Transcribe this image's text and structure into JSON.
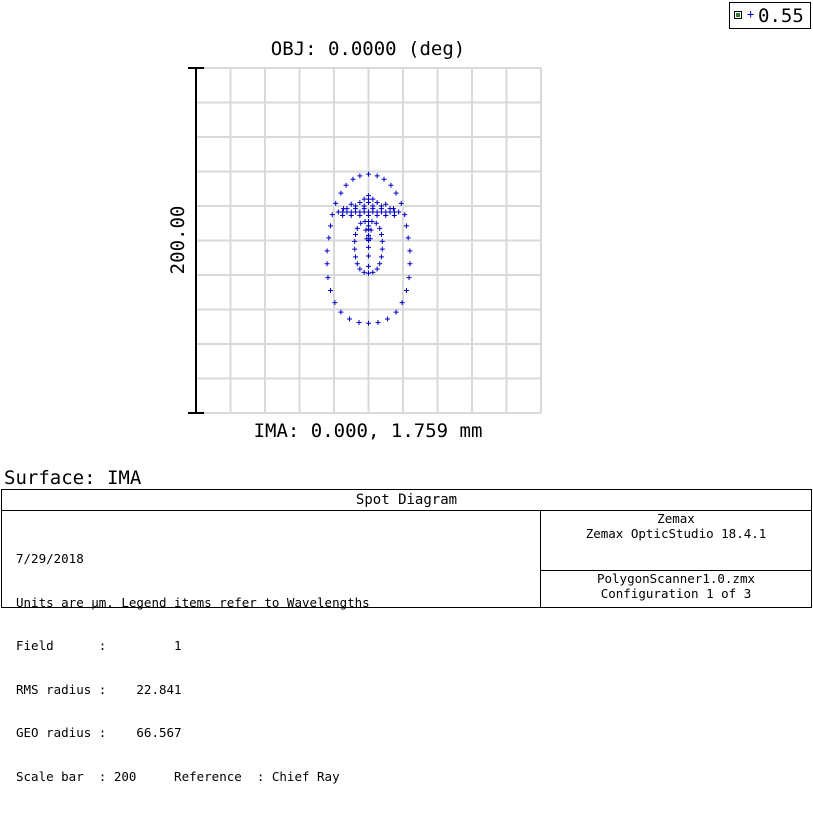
{
  "legend": {
    "entries": [
      {
        "label": "0.55",
        "color": "#0000c8",
        "checked": true
      }
    ]
  },
  "chart_data": {
    "type": "scatter",
    "title": "OBJ: 0.0000 (deg)",
    "xlabel": "IMA: 0.000, 1.759 mm",
    "ylabel": "200.00",
    "units": "µm",
    "scale_bar": 200,
    "grid": true,
    "xlim": [
      -200,
      200
    ],
    "ylim": [
      -200,
      200
    ],
    "marker": "+",
    "series_color": "#0000c8",
    "series": [
      {
        "name": "0.55",
        "points": [
          [
            0,
            77
          ],
          [
            -10,
            75
          ],
          [
            10,
            75
          ],
          [
            -18,
            71
          ],
          [
            18,
            71
          ],
          [
            -26,
            64
          ],
          [
            26,
            64
          ],
          [
            -32,
            55
          ],
          [
            32,
            55
          ],
          [
            -38,
            43
          ],
          [
            38,
            43
          ],
          [
            -42,
            30
          ],
          [
            42,
            30
          ],
          [
            -44,
            17
          ],
          [
            44,
            17
          ],
          [
            -46,
            3
          ],
          [
            46,
            3
          ],
          [
            -48,
            -12
          ],
          [
            48,
            -12
          ],
          [
            -48,
            -27
          ],
          [
            48,
            -27
          ],
          [
            -47,
            -43
          ],
          [
            47,
            -43
          ],
          [
            -44,
            -58
          ],
          [
            44,
            -58
          ],
          [
            -39,
            -72
          ],
          [
            39,
            -72
          ],
          [
            -32,
            -83
          ],
          [
            32,
            -83
          ],
          [
            -22,
            -91
          ],
          [
            22,
            -91
          ],
          [
            -11,
            -95
          ],
          [
            11,
            -95
          ],
          [
            0,
            -96
          ],
          [
            -35,
            33
          ],
          [
            -30,
            33
          ],
          [
            -25,
            33
          ],
          [
            -20,
            33
          ],
          [
            -15,
            33
          ],
          [
            -10,
            33
          ],
          [
            -5,
            33
          ],
          [
            0,
            33
          ],
          [
            5,
            33
          ],
          [
            10,
            33
          ],
          [
            15,
            33
          ],
          [
            20,
            33
          ],
          [
            25,
            33
          ],
          [
            30,
            33
          ],
          [
            35,
            33
          ],
          [
            -30,
            29
          ],
          [
            -20,
            29
          ],
          [
            -10,
            29
          ],
          [
            0,
            29
          ],
          [
            10,
            29
          ],
          [
            20,
            29
          ],
          [
            30,
            29
          ],
          [
            -25,
            37
          ],
          [
            -15,
            37
          ],
          [
            -5,
            37
          ],
          [
            5,
            37
          ],
          [
            15,
            37
          ],
          [
            25,
            37
          ],
          [
            -15,
            40
          ],
          [
            -5,
            40
          ],
          [
            5,
            40
          ],
          [
            15,
            40
          ],
          [
            -10,
            44
          ],
          [
            0,
            44
          ],
          [
            10,
            44
          ],
          [
            -5,
            48
          ],
          [
            0,
            48
          ],
          [
            5,
            48
          ],
          [
            0,
            52
          ],
          [
            -20,
            42
          ],
          [
            20,
            42
          ],
          [
            -29,
            37
          ],
          [
            29,
            37
          ],
          [
            0,
            22
          ],
          [
            0,
            17
          ],
          [
            0,
            13
          ],
          [
            0,
            6
          ],
          [
            0,
            0
          ],
          [
            0,
            -8
          ],
          [
            0,
            -18
          ],
          [
            0,
            -30
          ],
          [
            -4,
            22
          ],
          [
            4,
            22
          ],
          [
            -3,
            12
          ],
          [
            3,
            12
          ],
          [
            -2,
            2
          ],
          [
            2,
            2
          ],
          [
            -9,
            20
          ],
          [
            9,
            20
          ],
          [
            -13,
            14
          ],
          [
            13,
            14
          ],
          [
            -15,
            7
          ],
          [
            15,
            7
          ],
          [
            -16,
            -1
          ],
          [
            16,
            -1
          ],
          [
            -16,
            -10
          ],
          [
            16,
            -10
          ],
          [
            -15,
            -19
          ],
          [
            15,
            -19
          ],
          [
            -13,
            -27
          ],
          [
            13,
            -27
          ],
          [
            -10,
            -33
          ],
          [
            10,
            -33
          ],
          [
            -5,
            -37
          ],
          [
            5,
            -37
          ],
          [
            0,
            -38
          ]
        ]
      }
    ]
  },
  "surface": {
    "label": "Surface: IMA"
  },
  "info": {
    "title": "Spot Diagram",
    "left_lines": [
      "7/29/2018",
      "Units are µm. Legend items refer to Wavelengths",
      "Field      :         1",
      "RMS radius :    22.841",
      "GEO radius :    66.567",
      "Scale bar  : 200     Reference  : Chief Ray"
    ],
    "company_lines": [
      "Zemax",
      "Zemax OpticStudio 18.4.1"
    ],
    "file_lines": [
      "PolygonScanner1.0.zmx",
      "Configuration 1 of 3"
    ]
  }
}
